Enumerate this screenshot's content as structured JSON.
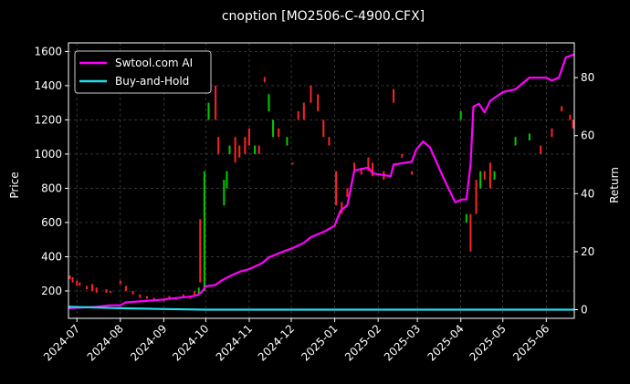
{
  "chart_data": {
    "type": "line",
    "title": "cnoption [MO2506-C-4900.CFX]",
    "ylabel_left": "Price",
    "ylabel_right": "Return",
    "x_ticks": [
      "2024-07",
      "2024-08",
      "2024-09",
      "2024-10",
      "2024-11",
      "2024-12",
      "2025-01",
      "2025-02",
      "2025-03",
      "2025-04",
      "2025-05",
      "2025-06"
    ],
    "y_left_ticks": [
      200,
      400,
      600,
      800,
      1000,
      1200,
      1400,
      1600
    ],
    "y_left_lim": [
      40,
      1650
    ],
    "y_right_ticks": [
      0,
      20,
      40,
      60,
      80
    ],
    "y_right_lim": [
      -3,
      92
    ],
    "x_range": [
      "2024-06-25",
      "2025-06-21"
    ],
    "grid": true,
    "legend_position": "top-left",
    "colors": {
      "background": "#000000",
      "strategy": "#ff00ff",
      "buyhold": "#22ddee",
      "candle_up": "#00cc00",
      "candle_down": "#ff2222",
      "grid": "#555555"
    },
    "series": [
      {
        "name": "Swtool.com AI",
        "axis": "right",
        "points": [
          [
            "2024-06-25",
            0.5
          ],
          [
            "2024-07-15",
            1.0
          ],
          [
            "2024-07-25",
            1.5
          ],
          [
            "2024-08-01",
            1.5
          ],
          [
            "2024-08-05",
            2.5
          ],
          [
            "2024-08-20",
            3.0
          ],
          [
            "2024-09-01",
            3.5
          ],
          [
            "2024-09-10",
            4.0
          ],
          [
            "2024-09-20",
            4.5
          ],
          [
            "2024-09-25",
            5.0
          ],
          [
            "2024-09-28",
            6.0
          ],
          [
            "2024-10-01",
            8.0
          ],
          [
            "2024-10-08",
            8.5
          ],
          [
            "2024-10-12",
            10.0
          ],
          [
            "2024-10-20",
            12.0
          ],
          [
            "2024-10-25",
            13.0
          ],
          [
            "2024-11-01",
            14.0
          ],
          [
            "2024-11-10",
            16.0
          ],
          [
            "2024-11-15",
            18.0
          ],
          [
            "2024-11-25",
            20.0
          ],
          [
            "2024-12-01",
            21.0
          ],
          [
            "2024-12-10",
            23.0
          ],
          [
            "2024-12-15",
            25.0
          ],
          [
            "2024-12-25",
            27.0
          ],
          [
            "2025-01-01",
            29.0
          ],
          [
            "2025-01-05",
            34.0
          ],
          [
            "2025-01-10",
            36.0
          ],
          [
            "2025-01-15",
            48.0
          ],
          [
            "2025-01-25",
            49.0
          ],
          [
            "2025-01-28",
            47.0
          ],
          [
            "2025-02-10",
            46.0
          ],
          [
            "2025-02-12",
            50.0
          ],
          [
            "2025-02-25",
            51.0
          ],
          [
            "2025-02-28",
            55.0
          ],
          [
            "2025-03-05",
            58.0
          ],
          [
            "2025-03-10",
            56.0
          ],
          [
            "2025-03-20",
            45.0
          ],
          [
            "2025-03-28",
            37.0
          ],
          [
            "2025-04-02",
            38.0
          ],
          [
            "2025-04-05",
            38.0
          ],
          [
            "2025-04-08",
            50.0
          ],
          [
            "2025-04-10",
            70.0
          ],
          [
            "2025-04-14",
            71.0
          ],
          [
            "2025-04-18",
            68.0
          ],
          [
            "2025-04-22",
            72.0
          ],
          [
            "2025-04-25",
            73.0
          ],
          [
            "2025-05-01",
            75.0
          ],
          [
            "2025-05-10",
            76.0
          ],
          [
            "2025-05-20",
            80.0
          ],
          [
            "2025-06-01",
            80.0
          ],
          [
            "2025-06-05",
            79.0
          ],
          [
            "2025-06-10",
            80.0
          ],
          [
            "2025-06-15",
            87.0
          ],
          [
            "2025-06-21",
            88.0
          ]
        ]
      },
      {
        "name": "Buy-and-Hold",
        "axis": "right",
        "points": [
          [
            "2024-06-25",
            1.0
          ],
          [
            "2024-08-01",
            0.5
          ],
          [
            "2024-09-01",
            0.2
          ],
          [
            "2024-10-01",
            0.0
          ],
          [
            "2024-12-01",
            0.0
          ],
          [
            "2025-03-01",
            0.0
          ],
          [
            "2025-06-21",
            0.0
          ]
        ]
      }
    ],
    "candles": [
      [
        "2024-06-26",
        290,
        270
      ],
      [
        "2024-06-28",
        280,
        250
      ],
      [
        "2024-07-01",
        260,
        230
      ],
      [
        "2024-07-03",
        250,
        230
      ],
      [
        "2024-07-08",
        230,
        210
      ],
      [
        "2024-07-12",
        240,
        200
      ],
      [
        "2024-07-15",
        220,
        190
      ],
      [
        "2024-07-22",
        210,
        190
      ],
      [
        "2024-07-25",
        200,
        190
      ],
      [
        "2024-08-01",
        260,
        240
      ],
      [
        "2024-08-05",
        230,
        200
      ],
      [
        "2024-08-10",
        200,
        180
      ],
      [
        "2024-08-15",
        180,
        160
      ],
      [
        "2024-08-20",
        170,
        155
      ],
      [
        "2024-08-25",
        160,
        150
      ],
      [
        "2024-09-01",
        150,
        140
      ],
      [
        "2024-09-05",
        170,
        150
      ],
      [
        "2024-09-10",
        160,
        150
      ],
      [
        "2024-09-15",
        180,
        160
      ],
      [
        "2024-09-20",
        170,
        155
      ],
      [
        "2024-09-23",
        200,
        170
      ],
      [
        "2024-09-26",
        180,
        220
      ],
      [
        "2024-09-27",
        620,
        250
      ],
      [
        "2024-09-30",
        200,
        900
      ],
      [
        "2024-10-03",
        1200,
        1300
      ],
      [
        "2024-10-08",
        1400,
        1200
      ],
      [
        "2024-10-10",
        1100,
        1000
      ],
      [
        "2024-10-14",
        700,
        850
      ],
      [
        "2024-10-16",
        800,
        900
      ],
      [
        "2024-10-18",
        1000,
        1050
      ],
      [
        "2024-10-22",
        1100,
        950
      ],
      [
        "2024-10-25",
        1050,
        980
      ],
      [
        "2024-10-29",
        1100,
        1000
      ],
      [
        "2024-11-01",
        1150,
        1050
      ],
      [
        "2024-11-05",
        1000,
        1050
      ],
      [
        "2024-11-08",
        1050,
        1000
      ],
      [
        "2024-11-12",
        1450,
        1420
      ],
      [
        "2024-11-15",
        1250,
        1350
      ],
      [
        "2024-11-18",
        1100,
        1200
      ],
      [
        "2024-11-22",
        1150,
        1100
      ],
      [
        "2024-11-28",
        1050,
        1100
      ],
      [
        "2024-12-02",
        950,
        940
      ],
      [
        "2024-12-06",
        1250,
        1200
      ],
      [
        "2024-12-10",
        1300,
        1200
      ],
      [
        "2024-12-15",
        1400,
        1300
      ],
      [
        "2024-12-20",
        1350,
        1250
      ],
      [
        "2024-12-24",
        1200,
        1100
      ],
      [
        "2024-12-28",
        1100,
        1050
      ],
      [
        "2025-01-02",
        900,
        700
      ],
      [
        "2025-01-06",
        720,
        650
      ],
      [
        "2025-01-10",
        800,
        750
      ],
      [
        "2025-01-15",
        950,
        900
      ],
      [
        "2025-01-20",
        920,
        880
      ],
      [
        "2025-01-25",
        980,
        900
      ],
      [
        "2025-01-28",
        950,
        870
      ],
      [
        "2025-02-05",
        900,
        850
      ],
      [
        "2025-02-12",
        1380,
        1300
      ],
      [
        "2025-02-18",
        1000,
        980
      ],
      [
        "2025-02-25",
        900,
        880
      ],
      [
        "2025-04-01",
        1200,
        1250
      ],
      [
        "2025-04-05",
        600,
        650
      ],
      [
        "2025-04-08",
        650,
        430
      ],
      [
        "2025-04-12",
        850,
        650
      ],
      [
        "2025-04-15",
        800,
        900
      ],
      [
        "2025-04-18",
        900,
        850
      ],
      [
        "2025-04-22",
        950,
        800
      ],
      [
        "2025-04-25",
        850,
        900
      ],
      [
        "2025-05-10",
        1050,
        1100
      ],
      [
        "2025-05-20",
        1080,
        1120
      ],
      [
        "2025-05-28",
        1050,
        1000
      ],
      [
        "2025-06-05",
        1150,
        1100
      ],
      [
        "2025-06-12",
        1280,
        1250
      ],
      [
        "2025-06-18",
        1230,
        1200
      ],
      [
        "2025-06-20",
        1200,
        1150
      ]
    ]
  }
}
